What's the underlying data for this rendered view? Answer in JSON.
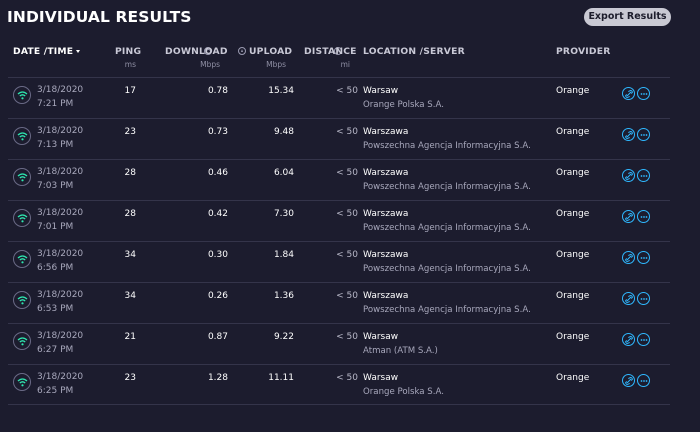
{
  "header": {
    "title": "INDIVIDUAL RESULTS",
    "export_label": "Export Results"
  },
  "columns": {
    "datetime": "DATE /TIME",
    "ping": "PING",
    "download": "DOWNLOAD",
    "upload": "UPLOAD",
    "distance": "DISTANCE",
    "location": "LOCATION /SERVER",
    "provider": "PROVIDER",
    "ping_unit": "ms",
    "download_unit": "Mbps",
    "upload_unit": "Mbps",
    "distance_unit": "mi"
  },
  "rows": [
    {
      "date": "3/18/2020",
      "time": "7:21 PM",
      "ping": "17",
      "download": "0.78",
      "upload": "15.34",
      "distance": "< 50",
      "city": "Warsaw",
      "server": "Orange Polska S.A.",
      "provider": "Orange"
    },
    {
      "date": "3/18/2020",
      "time": "7:13 PM",
      "ping": "23",
      "download": "0.73",
      "upload": "9.48",
      "distance": "< 50",
      "city": "Warszawa",
      "server": "Powszechna Agencja Informacyjna S.A.",
      "provider": "Orange"
    },
    {
      "date": "3/18/2020",
      "time": "7:03 PM",
      "ping": "28",
      "download": "0.46",
      "upload": "6.04",
      "distance": "< 50",
      "city": "Warszawa",
      "server": "Powszechna Agencja Informacyjna S.A.",
      "provider": "Orange"
    },
    {
      "date": "3/18/2020",
      "time": "7:01 PM",
      "ping": "28",
      "download": "0.42",
      "upload": "7.30",
      "distance": "< 50",
      "city": "Warszawa",
      "server": "Powszechna Agencja Informacyjna S.A.",
      "provider": "Orange"
    },
    {
      "date": "3/18/2020",
      "time": "6:56 PM",
      "ping": "34",
      "download": "0.30",
      "upload": "1.84",
      "distance": "< 50",
      "city": "Warszawa",
      "server": "Powszechna Agencja Informacyjna S.A.",
      "provider": "Orange"
    },
    {
      "date": "3/18/2020",
      "time": "6:53 PM",
      "ping": "34",
      "download": "0.26",
      "upload": "1.36",
      "distance": "< 50",
      "city": "Warszawa",
      "server": "Powszechna Agencja Informacyjna S.A.",
      "provider": "Orange"
    },
    {
      "date": "3/18/2020",
      "time": "6:27 PM",
      "ping": "21",
      "download": "0.87",
      "upload": "9.22",
      "distance": "< 50",
      "city": "Warsaw",
      "server": "Atman (ATM S.A.)",
      "provider": "Orange"
    },
    {
      "date": "3/18/2020",
      "time": "6:25 PM",
      "ping": "23",
      "download": "1.28",
      "upload": "11.11",
      "distance": "< 50",
      "city": "Warsaw",
      "server": "Orange Polska S.A.",
      "provider": "Orange"
    }
  ],
  "icons": {
    "connection": "wifi-icon",
    "share": "link-icon",
    "more": "more-icon",
    "sort": "caret-down-icon"
  },
  "colors": {
    "background": "#1c1c2e",
    "accent": "#2fb8ff",
    "wifi": "#2ee8b0"
  }
}
